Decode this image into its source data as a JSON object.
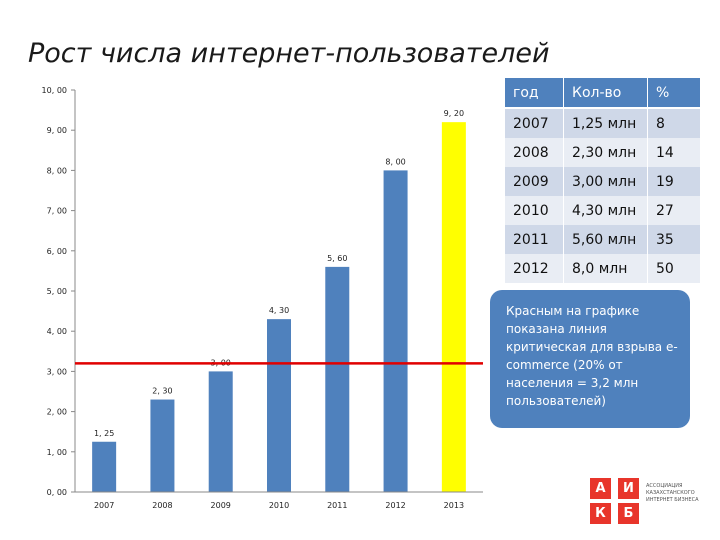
{
  "title": "Рост числа интернет-пользователей",
  "chart_data": {
    "type": "bar",
    "categories": [
      "2007",
      "2008",
      "2009",
      "2010",
      "2011",
      "2012",
      "2013"
    ],
    "values": [
      1.25,
      2.3,
      3.0,
      4.3,
      5.6,
      8.0,
      9.2
    ],
    "value_labels": [
      "1, 25",
      "2, 30",
      "3, 00",
      "4, 30",
      "5, 60",
      "8, 00",
      "9, 20"
    ],
    "y_ticks": [
      "0, 00",
      "1, 00",
      "2, 00",
      "3, 00",
      "4, 00",
      "5, 00",
      "6, 00",
      "7, 00",
      "8, 00",
      "9, 00",
      "10, 00"
    ],
    "ylim": [
      0,
      10
    ],
    "bar_color": "#4f81bd",
    "highlight_index": 6,
    "highlight_color": "#ffff00",
    "reference_line": {
      "value": 3.2,
      "color": "#e00000"
    },
    "title": "",
    "xlabel": "",
    "ylabel": "",
    "grid": false,
    "legend": "none"
  },
  "table": {
    "header": [
      "год",
      "Кол-во",
      "%"
    ],
    "rows": [
      [
        "2007",
        "1,25 млн",
        "8"
      ],
      [
        "2008",
        "2,30 млн",
        "14"
      ],
      [
        "2009",
        "3,00 млн",
        "19"
      ],
      [
        "2010",
        "4,30 млн",
        "27"
      ],
      [
        "2011",
        "5,60 млн",
        "35"
      ],
      [
        "2012",
        "8,0 млн",
        "50"
      ]
    ],
    "header_color": "#4f81bd"
  },
  "note": "Красным на графике показана линия критическая для взрыва e-commerce (20% от населения = 3,2 млн пользователей)",
  "logo": {
    "letters": [
      "А",
      "И",
      "К",
      "Б"
    ],
    "text": "АССОЦИАЦИЯ КАЗАХСТАНСКОГО ИНТЕРНЕТ БИЗНЕСА",
    "color": "#e8352b"
  }
}
